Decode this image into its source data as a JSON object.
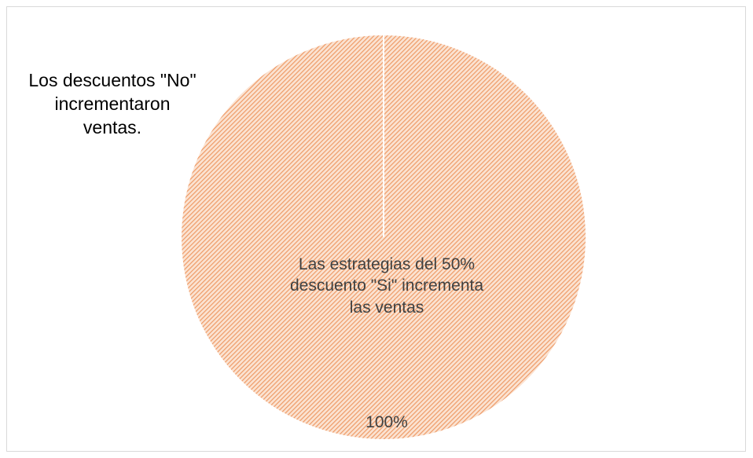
{
  "chart_data": {
    "type": "pie",
    "categories": [
      "Los descuentos \"No\" incrementaron ventas.",
      "Las estrategias del 50% descuento \"Si\" incrementa las ventas"
    ],
    "values": [
      0,
      100
    ],
    "value_labels": [
      null,
      "100%"
    ],
    "color": "#f4a878"
  }
}
